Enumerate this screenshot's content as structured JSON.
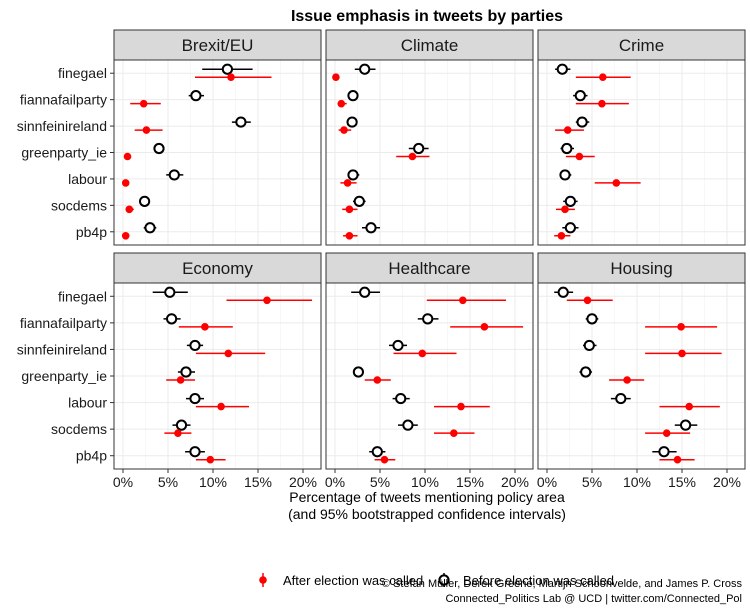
{
  "colors": {
    "after": "#ff0000",
    "before": "#000000",
    "strip_bg": "#d9d9d9",
    "grid": "#ebebeb",
    "panel_border": "#333333"
  },
  "labels": {
    "title": "Issue emphasis in tweets by parties",
    "xlabel_line1": "Percentage of tweets mentioning policy area",
    "xlabel_line2": "(and 95% bootstrapped confidence intervals)",
    "legend_after": "After election was called",
    "legend_before": "Before election was called",
    "credit_line1": "© Stefan Müller, Derek Greene, Martijn Schoonvelde, and James P. Cross",
    "credit_line2": "Connected_Politics Lab @ UCD | twitter.com/Connected_Pol"
  },
  "chart_data": {
    "type": "scatter",
    "subtype": "dot-and-whisker, faceted 2x3",
    "title": "Issue emphasis in tweets by parties",
    "xlabel": "Percentage of tweets mentioning policy area\n(and 95% bootstrapped confidence intervals)",
    "ylabel": "",
    "xlim": [
      -1,
      22
    ],
    "xticks": [
      0,
      5,
      10,
      15,
      20
    ],
    "xtick_labels": [
      "0%",
      "5%",
      "10%",
      "15%",
      "20%"
    ],
    "grid": true,
    "legend_position": "bottom",
    "parties": [
      "finegael",
      "fiannafailparty",
      "sinnfeinireland",
      "greenparty_ie",
      "labour",
      "socdems",
      "pb4p"
    ],
    "series": [
      {
        "name": "After election was called",
        "marker": "filled-circle",
        "color": "#ff0000"
      },
      {
        "name": "Before election was called",
        "marker": "open-circle",
        "color": "#000000"
      }
    ],
    "panels": [
      {
        "name": "Brexit/EU",
        "after": [
          [
            12.0,
            8.0,
            16.5
          ],
          [
            2.3,
            0.8,
            4.2
          ],
          [
            2.6,
            1.3,
            4.4
          ],
          [
            0.5,
            0.2,
            0.9
          ],
          [
            0.3,
            0.1,
            0.6
          ],
          [
            0.7,
            0.3,
            1.2
          ],
          [
            0.3,
            0.1,
            0.6
          ]
        ],
        "before": [
          [
            11.6,
            8.8,
            14.4
          ],
          [
            8.1,
            7.3,
            9.0
          ],
          [
            13.1,
            12.1,
            14.2
          ],
          [
            4.0,
            3.4,
            4.6
          ],
          [
            5.7,
            4.8,
            6.7
          ],
          [
            2.4,
            1.8,
            3.0
          ],
          [
            3.0,
            2.3,
            3.7
          ]
        ]
      },
      {
        "name": "Climate",
        "after": [
          [
            0.1,
            0.0,
            0.3
          ],
          [
            0.7,
            0.3,
            1.3
          ],
          [
            1.0,
            0.4,
            1.8
          ],
          [
            8.6,
            6.8,
            10.5
          ],
          [
            1.4,
            0.6,
            2.4
          ],
          [
            1.6,
            0.8,
            2.5
          ],
          [
            1.6,
            0.9,
            2.5
          ]
        ],
        "before": [
          [
            3.3,
            2.2,
            4.5
          ],
          [
            2.0,
            1.5,
            2.6
          ],
          [
            1.9,
            1.3,
            2.5
          ],
          [
            9.3,
            8.2,
            10.4
          ],
          [
            2.0,
            1.4,
            2.7
          ],
          [
            2.7,
            2.0,
            3.4
          ],
          [
            4.0,
            3.0,
            5.0
          ]
        ]
      },
      {
        "name": "Crime",
        "after": [
          [
            6.2,
            3.2,
            9.3
          ],
          [
            6.1,
            3.2,
            9.1
          ],
          [
            2.3,
            0.9,
            4.1
          ],
          [
            3.6,
            2.1,
            5.3
          ],
          [
            7.7,
            5.3,
            10.4
          ],
          [
            2.0,
            1.0,
            3.1
          ],
          [
            1.6,
            0.8,
            2.6
          ]
        ],
        "before": [
          [
            1.7,
            0.9,
            2.6
          ],
          [
            3.7,
            2.9,
            4.5
          ],
          [
            3.9,
            3.2,
            4.7
          ],
          [
            2.2,
            1.5,
            3.0
          ],
          [
            2.0,
            1.4,
            2.7
          ],
          [
            2.6,
            1.8,
            3.4
          ],
          [
            2.6,
            1.7,
            3.5
          ]
        ]
      },
      {
        "name": "Economy",
        "after": [
          [
            16.0,
            11.5,
            21.0
          ],
          [
            9.1,
            6.2,
            12.2
          ],
          [
            11.7,
            8.1,
            15.8
          ],
          [
            6.4,
            4.8,
            8.0
          ],
          [
            10.9,
            8.1,
            14.0
          ],
          [
            6.1,
            4.6,
            7.6
          ],
          [
            9.7,
            8.1,
            11.4
          ]
        ],
        "before": [
          [
            5.2,
            3.3,
            7.2
          ],
          [
            5.4,
            4.5,
            6.4
          ],
          [
            8.0,
            7.1,
            8.9
          ],
          [
            7.0,
            6.1,
            8.0
          ],
          [
            8.0,
            7.0,
            9.0
          ],
          [
            6.5,
            5.5,
            7.5
          ],
          [
            8.0,
            6.9,
            9.1
          ]
        ]
      },
      {
        "name": "Healthcare",
        "after": [
          [
            14.2,
            10.2,
            19.0
          ],
          [
            16.6,
            12.8,
            20.9
          ],
          [
            9.7,
            6.5,
            13.5
          ],
          [
            4.7,
            3.3,
            6.2
          ],
          [
            14.0,
            11.0,
            17.2
          ],
          [
            13.2,
            11.0,
            15.5
          ],
          [
            5.5,
            4.4,
            6.7
          ]
        ],
        "before": [
          [
            3.3,
            1.8,
            5.0
          ],
          [
            10.3,
            9.2,
            11.5
          ],
          [
            7.0,
            6.0,
            8.0
          ],
          [
            2.6,
            2.0,
            3.2
          ],
          [
            7.3,
            6.4,
            8.3
          ],
          [
            8.1,
            7.0,
            9.2
          ],
          [
            4.7,
            3.8,
            5.6
          ]
        ]
      },
      {
        "name": "Housing",
        "after": [
          [
            4.5,
            2.2,
            7.3
          ],
          [
            14.9,
            10.9,
            18.9
          ],
          [
            15.0,
            10.9,
            19.4
          ],
          [
            8.9,
            6.9,
            10.8
          ],
          [
            15.8,
            12.5,
            19.2
          ],
          [
            13.3,
            10.9,
            15.9
          ],
          [
            14.5,
            12.5,
            16.4
          ]
        ],
        "before": [
          [
            1.8,
            0.8,
            2.9
          ],
          [
            5.0,
            4.3,
            5.7
          ],
          [
            4.7,
            4.0,
            5.5
          ],
          [
            4.3,
            3.6,
            5.0
          ],
          [
            8.2,
            7.1,
            9.3
          ],
          [
            15.4,
            14.2,
            16.7
          ],
          [
            13.0,
            11.7,
            14.4
          ]
        ]
      }
    ]
  }
}
